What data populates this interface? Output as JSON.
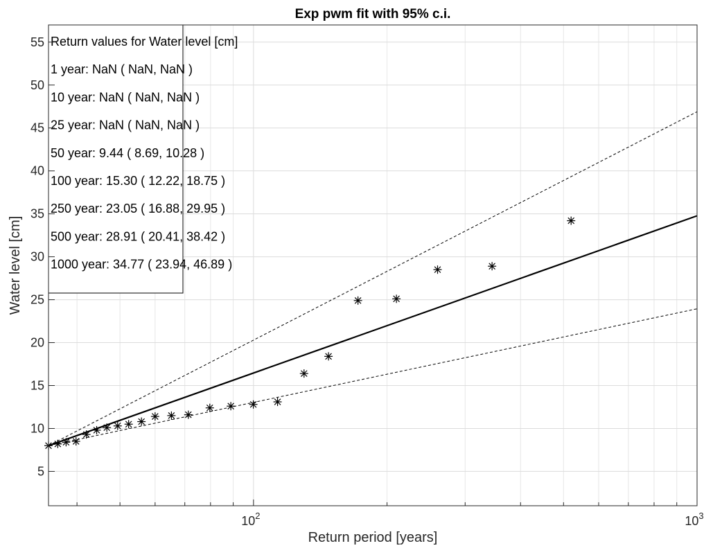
{
  "chart_data": {
    "type": "scatter",
    "title": "Exp pwm fit with 95% c.i.",
    "xlabel": "Return period [years]",
    "ylabel": "Water level [cm]",
    "xscale": "log",
    "xlim": [
      34.5,
      1000
    ],
    "ylim": [
      1,
      57
    ],
    "grid": true,
    "y_ticks": [
      5,
      10,
      15,
      20,
      25,
      30,
      35,
      40,
      45,
      50,
      55
    ],
    "x_ticks": [
      {
        "base": "10",
        "exp": "2",
        "value": 100
      },
      {
        "base": "10",
        "exp": "3",
        "value": 1000
      }
    ],
    "series": [
      {
        "style": "fit-line",
        "x": [
          34.5,
          1000
        ],
        "y": [
          8.0,
          34.77
        ]
      },
      {
        "style": "upper-ci",
        "x": [
          34.5,
          1000
        ],
        "y": [
          8.0,
          46.89
        ]
      },
      {
        "style": "lower-ci",
        "x": [
          34.5,
          1000
        ],
        "y": [
          8.0,
          23.94
        ]
      },
      {
        "style": "observations",
        "x": [
          34.5,
          36.2,
          37.8,
          39.8,
          42.0,
          44.3,
          46.7,
          49.4,
          52.3,
          55.9,
          60.0,
          65.3,
          71.3,
          79.7,
          88.9,
          99.9,
          113.3,
          130.0,
          147.6,
          172.0,
          210.0,
          260.0,
          345.0,
          520.0
        ],
        "y": [
          8.0,
          8.2,
          8.4,
          8.5,
          9.3,
          9.8,
          10.1,
          10.3,
          10.5,
          10.8,
          11.4,
          11.5,
          11.6,
          12.4,
          12.6,
          12.8,
          13.1,
          16.4,
          18.4,
          24.9,
          25.1,
          28.5,
          28.9,
          34.2
        ]
      }
    ],
    "legend": {
      "placement": "top-left",
      "lines": [
        "Return values for Water level [cm]",
        "1 year: NaN ( NaN, NaN )",
        "10 year: NaN ( NaN, NaN )",
        "25 year: NaN ( NaN, NaN )",
        "50 year: 9.44 ( 8.69, 10.28 )",
        "100 year: 15.30 ( 12.22, 18.75 )",
        "250 year: 23.05 ( 16.88, 29.95 )",
        "500 year: 28.91 ( 20.41, 38.42 )",
        "1000 year: 34.77 ( 23.94, 46.89 )"
      ]
    }
  }
}
